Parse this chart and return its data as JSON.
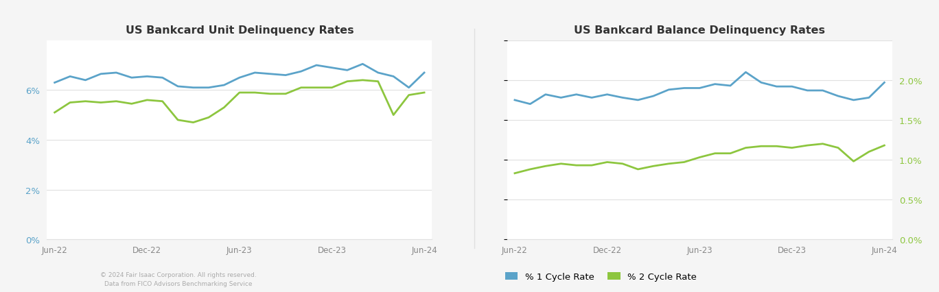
{
  "title_left": "US Bankcard Unit Delinquency Rates",
  "title_right": "US Bankcard Balance Delinquency Rates",
  "x_labels": [
    "Jun-22",
    "Dec-22",
    "Jun-23",
    "Dec-23",
    "Jun-24"
  ],
  "x_ticks": [
    0,
    6,
    12,
    18,
    24
  ],
  "n_points": 25,
  "unit_1cycle": [
    6.3,
    6.55,
    6.4,
    6.65,
    6.7,
    6.5,
    6.55,
    6.5,
    6.15,
    6.1,
    6.1,
    6.2,
    6.5,
    6.7,
    6.65,
    6.6,
    6.75,
    7.0,
    6.9,
    6.8,
    7.05,
    6.7,
    6.55,
    6.1,
    6.7
  ],
  "unit_2cycle": [
    5.1,
    5.5,
    5.55,
    5.5,
    5.55,
    5.45,
    5.6,
    5.55,
    4.8,
    4.7,
    4.9,
    5.3,
    5.9,
    5.9,
    5.85,
    5.85,
    6.1,
    6.1,
    6.1,
    6.35,
    6.4,
    6.35,
    5.0,
    5.8,
    5.9
  ],
  "balance_1cycle": [
    1.75,
    1.7,
    1.82,
    1.78,
    1.82,
    1.78,
    1.82,
    1.78,
    1.75,
    1.8,
    1.88,
    1.9,
    1.9,
    1.95,
    1.93,
    2.1,
    1.97,
    1.92,
    1.92,
    1.87,
    1.87,
    1.8,
    1.75,
    1.78,
    1.97
  ],
  "balance_2cycle": [
    0.83,
    0.88,
    0.92,
    0.95,
    0.93,
    0.93,
    0.97,
    0.95,
    0.88,
    0.92,
    0.95,
    0.97,
    1.03,
    1.08,
    1.08,
    1.15,
    1.17,
    1.17,
    1.15,
    1.18,
    1.2,
    1.15,
    0.98,
    1.1,
    1.18
  ],
  "color_blue": "#5ba3c9",
  "color_green": "#8dc63f",
  "left_ylim": [
    0,
    8
  ],
  "left_yticks": [
    0,
    2,
    4,
    6
  ],
  "right_yticks": [
    0.0,
    0.5,
    1.0,
    1.5,
    2.0
  ],
  "balance_ylim": [
    0.0,
    2.5
  ],
  "footnote": "© 2024 Fair Isaac Corporation. All rights reserved.\nData from FICO Advisors Benchmarking Service",
  "legend_1cycle": "% 1 Cycle Rate",
  "legend_2cycle": "% 2 Cycle Rate",
  "bg_color": "#f5f5f5",
  "plot_bg": "#ffffff",
  "grid_color": "#e0e0e0",
  "axis_label_color": "#5ba3c9",
  "right_axis_label_color": "#8dc63f",
  "title_color": "#333333",
  "tick_label_color": "#888888"
}
